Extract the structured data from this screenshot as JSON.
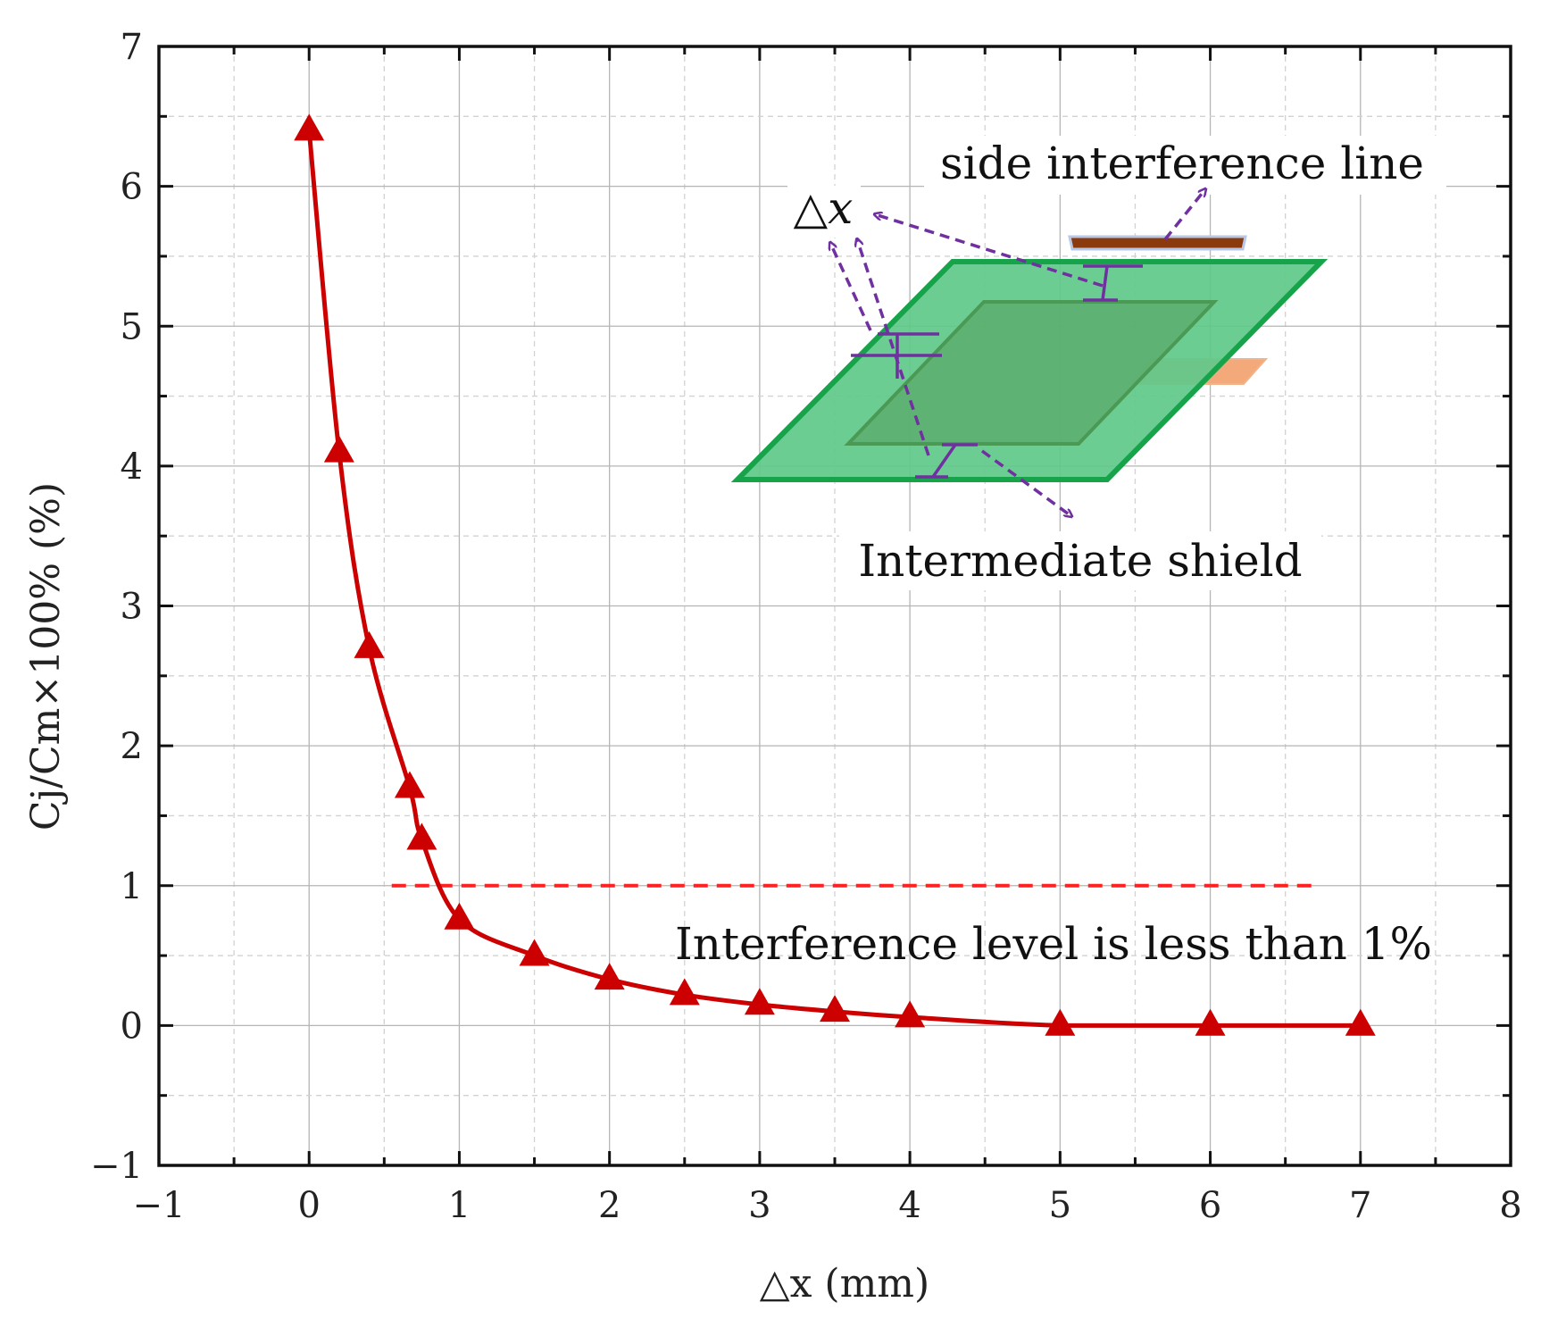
{
  "chart_data": {
    "type": "line",
    "xlabel": "△x (mm)",
    "ylabel": "Cj/Cm×100% (%)",
    "xlim": [
      -1,
      8
    ],
    "ylim": [
      -1,
      7
    ],
    "x_ticks": [
      "−1",
      "0",
      "1",
      "2",
      "3",
      "4",
      "5",
      "6",
      "7",
      "8"
    ],
    "y_ticks": [
      "−1",
      "0",
      "1",
      "2",
      "3",
      "4",
      "5",
      "6",
      "7"
    ],
    "grid": true,
    "series": [
      {
        "color": "#cc0000",
        "marker": "triangle",
        "x": [
          0,
          0.2,
          0.4,
          0.67,
          0.75,
          1.0,
          1.5,
          2.0,
          2.5,
          3.0,
          3.5,
          4.0,
          5.0,
          6.0,
          7.0
        ],
        "y": [
          6.4,
          4.1,
          2.7,
          1.7,
          1.33,
          0.76,
          0.5,
          0.33,
          0.22,
          0.15,
          0.1,
          0.06,
          0.0,
          0.0,
          0.0
        ]
      }
    ],
    "reference_line": {
      "y": 1,
      "x_range": [
        0.55,
        6.7
      ],
      "style": "dashed",
      "color": "#ff2222"
    },
    "annotations": {
      "threshold_text": "Interference level is less than 1%",
      "side_line_label": "side interference line",
      "shield_label": "Intermediate shield",
      "dx_label": "△x"
    },
    "colors": {
      "curve": "#cc0000",
      "dashed": "#ff2222",
      "arrows": "#7030a0",
      "shield": "#5fc98a",
      "shield_edge": "#16a34a",
      "inner_plate": "#5aaa6a",
      "side_line": "#8b3a0e",
      "lower_plate": "#f4a97a"
    }
  }
}
